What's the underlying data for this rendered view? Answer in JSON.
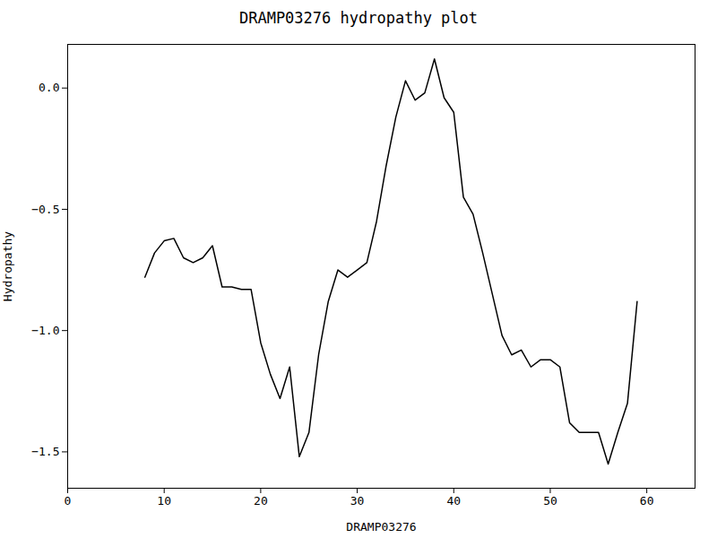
{
  "chart_data": {
    "type": "line",
    "title": "DRAMP03276 hydropathy plot",
    "x_label": "DRAMP03276",
    "y_label": "Hydropathy",
    "x": [
      8,
      9,
      10,
      11,
      12,
      13,
      14,
      15,
      16,
      17,
      18,
      19,
      20,
      21,
      22,
      23,
      24,
      25,
      26,
      27,
      28,
      29,
      30,
      31,
      32,
      33,
      34,
      35,
      36,
      37,
      38,
      39,
      40,
      41,
      42,
      43,
      44,
      45,
      46,
      47,
      48,
      49,
      50,
      51,
      52,
      53,
      54,
      55,
      56,
      57,
      58,
      59
    ],
    "values": [
      -0.78,
      -0.68,
      -0.63,
      -0.62,
      -0.7,
      -0.72,
      -0.7,
      -0.65,
      -0.82,
      -0.82,
      -0.83,
      -0.83,
      -1.05,
      -1.18,
      -1.28,
      -1.15,
      -1.52,
      -1.42,
      -1.1,
      -0.88,
      -0.75,
      -0.78,
      -0.75,
      -0.72,
      -0.55,
      -0.32,
      -0.12,
      0.03,
      -0.05,
      -0.02,
      0.12,
      -0.04,
      -0.1,
      -0.45,
      -0.52,
      -0.68,
      -0.85,
      -1.02,
      -1.1,
      -1.08,
      -1.15,
      -1.12,
      -1.12,
      -1.15,
      -1.38,
      -1.42,
      -1.42,
      -1.42,
      -1.55,
      -1.42,
      -1.3,
      -0.88
    ],
    "color": "#000000",
    "xlim": [
      0,
      65
    ],
    "ylim": [
      -1.65,
      0.18
    ],
    "xticks": [
      0,
      10,
      20,
      30,
      40,
      50,
      60
    ],
    "yticks": [
      {
        "value": 0.0,
        "label": "0.0"
      },
      {
        "value": -0.5,
        "label": "−0.5"
      },
      {
        "value": -1.0,
        "label": "−1.0"
      },
      {
        "value": -1.5,
        "label": "−1.5"
      }
    ],
    "grid": false
  }
}
